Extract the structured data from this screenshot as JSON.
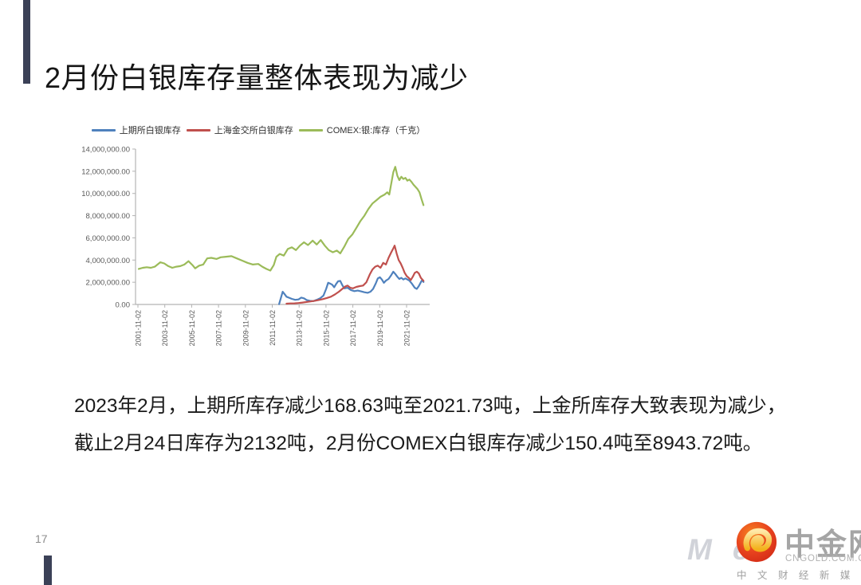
{
  "header": {
    "title": "2月份白银库存量整体表现为减少"
  },
  "body": {
    "line1": "2023年2月，上期所库存减少168.63吨至2021.73吨，上金所库存大致表现为减少，",
    "line2": "截止2月24日库存为2132吨，2月份COMEX白银库存减少150.4吨至8943.72吨。"
  },
  "footer": {
    "page_number": "17"
  },
  "logo": {
    "brand": "中金网",
    "domain": "CNGOLD.COM.CN",
    "tagline": "中 文 财 经 新 媒 体",
    "watermark": "Me",
    "icon": "golden-cloud-swirl-in-red-circle"
  },
  "colors": {
    "accent_bar": "#3b4157",
    "axis": "#b3b3b3",
    "tick_text": "#595959",
    "series_blue": "#4f81bd",
    "series_red": "#c0504d",
    "series_green": "#9bbb59",
    "logo_red": "#e0391f",
    "logo_gold": "#f5b81c"
  },
  "chart_data": {
    "type": "line",
    "title": "",
    "xlabel": "",
    "ylabel": "",
    "y_unit": "千克",
    "grid": false,
    "legend_position": "top",
    "ylim": [
      0,
      14000000
    ],
    "yticks": [
      {
        "value": 0,
        "label": "0.00"
      },
      {
        "value": 2000000,
        "label": "2,000,000.00"
      },
      {
        "value": 4000000,
        "label": "4,000,000.00"
      },
      {
        "value": 6000000,
        "label": "6,000,000.00"
      },
      {
        "value": 8000000,
        "label": "8,000,000.00"
      },
      {
        "value": 10000000,
        "label": "10,000,000.00"
      },
      {
        "value": 12000000,
        "label": "12,000,000.00"
      },
      {
        "value": 14000000,
        "label": "14,000,000.00"
      }
    ],
    "xticks": [
      {
        "year": 2001.84,
        "label": "2001-11-02"
      },
      {
        "year": 2003.84,
        "label": "2003-11-02"
      },
      {
        "year": 2005.84,
        "label": "2005-11-02"
      },
      {
        "year": 2007.84,
        "label": "2007-11-02"
      },
      {
        "year": 2009.84,
        "label": "2009-11-02"
      },
      {
        "year": 2011.84,
        "label": "2011-11-02"
      },
      {
        "year": 2013.84,
        "label": "2013-11-02"
      },
      {
        "year": 2015.84,
        "label": "2015-11-02"
      },
      {
        "year": 2017.84,
        "label": "2017-11-02"
      },
      {
        "year": 2019.84,
        "label": "2019-11-02"
      },
      {
        "year": 2021.84,
        "label": "2021-11-02"
      }
    ],
    "series": [
      {
        "name": "上期所白银库存",
        "color": "#4f81bd",
        "points": [
          [
            2012.35,
            30000
          ],
          [
            2012.5,
            650000
          ],
          [
            2012.62,
            1150000
          ],
          [
            2012.75,
            950000
          ],
          [
            2012.9,
            700000
          ],
          [
            2013.1,
            600000
          ],
          [
            2013.3,
            500000
          ],
          [
            2013.55,
            420000
          ],
          [
            2013.8,
            450000
          ],
          [
            2014.0,
            620000
          ],
          [
            2014.2,
            550000
          ],
          [
            2014.4,
            400000
          ],
          [
            2014.65,
            320000
          ],
          [
            2014.9,
            300000
          ],
          [
            2015.15,
            420000
          ],
          [
            2015.4,
            550000
          ],
          [
            2015.65,
            800000
          ],
          [
            2015.85,
            1400000
          ],
          [
            2016.0,
            1950000
          ],
          [
            2016.15,
            1880000
          ],
          [
            2016.3,
            1780000
          ],
          [
            2016.45,
            1550000
          ],
          [
            2016.6,
            1850000
          ],
          [
            2016.75,
            2100000
          ],
          [
            2016.9,
            2120000
          ],
          [
            2017.05,
            1750000
          ],
          [
            2017.2,
            1450000
          ],
          [
            2017.45,
            1500000
          ],
          [
            2017.7,
            1300000
          ],
          [
            2017.95,
            1200000
          ],
          [
            2018.2,
            1250000
          ],
          [
            2018.45,
            1180000
          ],
          [
            2018.7,
            1100000
          ],
          [
            2018.95,
            1050000
          ],
          [
            2019.15,
            1150000
          ],
          [
            2019.35,
            1400000
          ],
          [
            2019.55,
            1900000
          ],
          [
            2019.7,
            2350000
          ],
          [
            2019.85,
            2450000
          ],
          [
            2020.0,
            2250000
          ],
          [
            2020.15,
            1950000
          ],
          [
            2020.3,
            2150000
          ],
          [
            2020.5,
            2300000
          ],
          [
            2020.7,
            2650000
          ],
          [
            2020.85,
            2950000
          ],
          [
            2021.0,
            2750000
          ],
          [
            2021.15,
            2500000
          ],
          [
            2021.3,
            2300000
          ],
          [
            2021.45,
            2400000
          ],
          [
            2021.6,
            2250000
          ],
          [
            2021.75,
            2350000
          ],
          [
            2021.9,
            2250000
          ],
          [
            2022.05,
            2150000
          ],
          [
            2022.25,
            1850000
          ],
          [
            2022.45,
            1500000
          ],
          [
            2022.6,
            1400000
          ],
          [
            2022.75,
            1650000
          ],
          [
            2022.9,
            2000000
          ],
          [
            2023.0,
            2200000
          ],
          [
            2023.1,
            2021730
          ]
        ]
      },
      {
        "name": "上海金交所白银库存",
        "color": "#c0504d",
        "points": [
          [
            2012.9,
            70000
          ],
          [
            2013.2,
            90000
          ],
          [
            2013.5,
            100000
          ],
          [
            2013.8,
            130000
          ],
          [
            2014.1,
            170000
          ],
          [
            2014.4,
            220000
          ],
          [
            2014.7,
            270000
          ],
          [
            2015.0,
            330000
          ],
          [
            2015.3,
            400000
          ],
          [
            2015.6,
            480000
          ],
          [
            2015.9,
            580000
          ],
          [
            2016.2,
            700000
          ],
          [
            2016.5,
            900000
          ],
          [
            2016.8,
            1150000
          ],
          [
            2017.05,
            1400000
          ],
          [
            2017.25,
            1600000
          ],
          [
            2017.45,
            1700000
          ],
          [
            2017.65,
            1500000
          ],
          [
            2017.85,
            1450000
          ],
          [
            2018.1,
            1580000
          ],
          [
            2018.35,
            1650000
          ],
          [
            2018.6,
            1700000
          ],
          [
            2018.85,
            2000000
          ],
          [
            2019.1,
            2700000
          ],
          [
            2019.3,
            3150000
          ],
          [
            2019.5,
            3400000
          ],
          [
            2019.7,
            3500000
          ],
          [
            2019.9,
            3300000
          ],
          [
            2020.1,
            3750000
          ],
          [
            2020.3,
            3600000
          ],
          [
            2020.5,
            4200000
          ],
          [
            2020.7,
            4700000
          ],
          [
            2020.85,
            5050000
          ],
          [
            2020.95,
            5300000
          ],
          [
            2021.1,
            4600000
          ],
          [
            2021.25,
            4000000
          ],
          [
            2021.4,
            3700000
          ],
          [
            2021.55,
            3300000
          ],
          [
            2021.7,
            2850000
          ],
          [
            2021.85,
            2550000
          ],
          [
            2022.0,
            2400000
          ],
          [
            2022.15,
            2200000
          ],
          [
            2022.3,
            2500000
          ],
          [
            2022.45,
            2850000
          ],
          [
            2022.6,
            2950000
          ],
          [
            2022.75,
            2800000
          ],
          [
            2022.9,
            2400000
          ],
          [
            2023.1,
            2132000
          ]
        ]
      },
      {
        "name": "COMEX:银:库存（千克）",
        "color": "#9bbb59",
        "points": [
          [
            2001.9,
            3200000
          ],
          [
            2002.2,
            3300000
          ],
          [
            2002.5,
            3350000
          ],
          [
            2002.8,
            3300000
          ],
          [
            2003.1,
            3400000
          ],
          [
            2003.5,
            3800000
          ],
          [
            2003.8,
            3700000
          ],
          [
            2004.1,
            3450000
          ],
          [
            2004.4,
            3300000
          ],
          [
            2004.7,
            3400000
          ],
          [
            2005.0,
            3450000
          ],
          [
            2005.3,
            3600000
          ],
          [
            2005.6,
            3900000
          ],
          [
            2005.9,
            3550000
          ],
          [
            2006.1,
            3250000
          ],
          [
            2006.4,
            3500000
          ],
          [
            2006.7,
            3600000
          ],
          [
            2007.0,
            4150000
          ],
          [
            2007.3,
            4200000
          ],
          [
            2007.7,
            4100000
          ],
          [
            2008.0,
            4250000
          ],
          [
            2008.4,
            4300000
          ],
          [
            2008.8,
            4350000
          ],
          [
            2009.2,
            4150000
          ],
          [
            2009.6,
            3950000
          ],
          [
            2010.0,
            3750000
          ],
          [
            2010.4,
            3600000
          ],
          [
            2010.8,
            3650000
          ],
          [
            2011.1,
            3400000
          ],
          [
            2011.4,
            3200000
          ],
          [
            2011.7,
            3050000
          ],
          [
            2011.95,
            3550000
          ],
          [
            2012.15,
            4300000
          ],
          [
            2012.4,
            4550000
          ],
          [
            2012.7,
            4400000
          ],
          [
            2013.0,
            5000000
          ],
          [
            2013.3,
            5150000
          ],
          [
            2013.6,
            4900000
          ],
          [
            2013.9,
            5300000
          ],
          [
            2014.2,
            5600000
          ],
          [
            2014.5,
            5350000
          ],
          [
            2014.85,
            5750000
          ],
          [
            2015.15,
            5400000
          ],
          [
            2015.45,
            5800000
          ],
          [
            2015.75,
            5300000
          ],
          [
            2016.05,
            4900000
          ],
          [
            2016.35,
            4700000
          ],
          [
            2016.65,
            4850000
          ],
          [
            2016.9,
            4600000
          ],
          [
            2017.2,
            5200000
          ],
          [
            2017.5,
            5900000
          ],
          [
            2017.8,
            6300000
          ],
          [
            2018.1,
            6900000
          ],
          [
            2018.4,
            7500000
          ],
          [
            2018.7,
            8000000
          ],
          [
            2019.0,
            8600000
          ],
          [
            2019.3,
            9100000
          ],
          [
            2019.6,
            9400000
          ],
          [
            2019.9,
            9700000
          ],
          [
            2020.2,
            9900000
          ],
          [
            2020.4,
            10100000
          ],
          [
            2020.55,
            9900000
          ],
          [
            2020.7,
            10900000
          ],
          [
            2020.85,
            11900000
          ],
          [
            2021.0,
            12400000
          ],
          [
            2021.15,
            11600000
          ],
          [
            2021.3,
            11200000
          ],
          [
            2021.45,
            11500000
          ],
          [
            2021.6,
            11300000
          ],
          [
            2021.75,
            11400000
          ],
          [
            2021.9,
            11150000
          ],
          [
            2022.05,
            11250000
          ],
          [
            2022.2,
            11050000
          ],
          [
            2022.35,
            10800000
          ],
          [
            2022.5,
            10600000
          ],
          [
            2022.65,
            10400000
          ],
          [
            2022.8,
            10100000
          ],
          [
            2022.95,
            9500000
          ],
          [
            2023.1,
            8943720
          ]
        ]
      }
    ]
  }
}
